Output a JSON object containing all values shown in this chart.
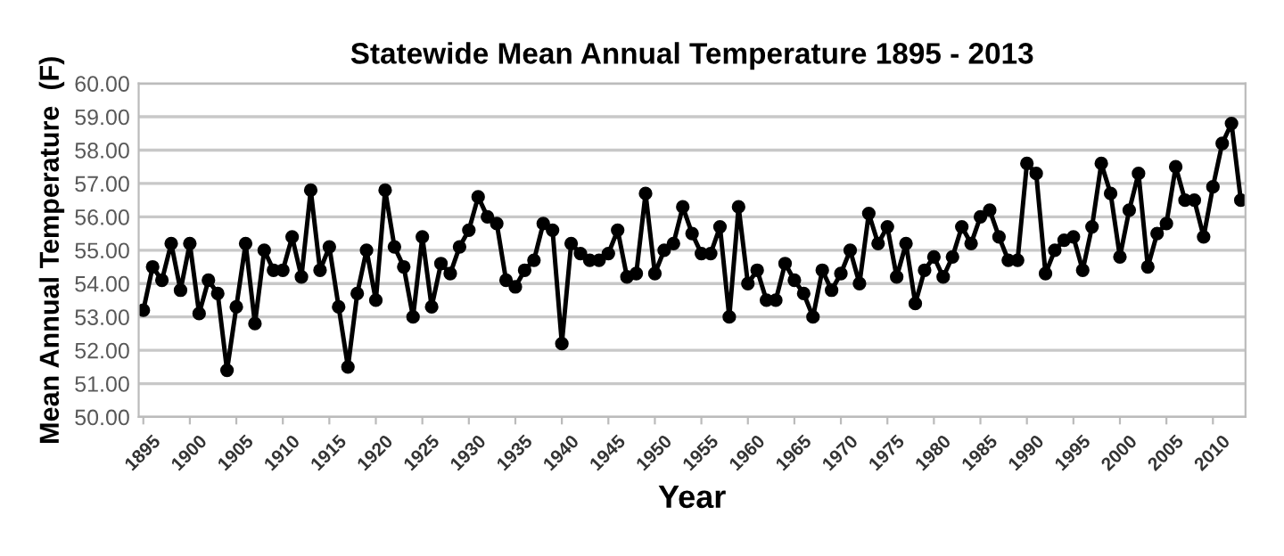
{
  "chart_data": {
    "type": "line",
    "title": "Statewide Mean Annual Temperature 1895 - 2013",
    "xlabel": "Year",
    "ylabel": "Mean Annual Temperature  (F)",
    "x": [
      1895,
      1896,
      1897,
      1898,
      1899,
      1900,
      1901,
      1902,
      1903,
      1904,
      1905,
      1906,
      1907,
      1908,
      1909,
      1910,
      1911,
      1912,
      1913,
      1914,
      1915,
      1916,
      1917,
      1918,
      1919,
      1920,
      1921,
      1922,
      1923,
      1924,
      1925,
      1926,
      1927,
      1928,
      1929,
      1930,
      1931,
      1932,
      1933,
      1934,
      1935,
      1936,
      1937,
      1938,
      1939,
      1940,
      1941,
      1942,
      1943,
      1944,
      1945,
      1946,
      1947,
      1948,
      1949,
      1950,
      1951,
      1952,
      1953,
      1954,
      1955,
      1956,
      1957,
      1958,
      1959,
      1960,
      1961,
      1962,
      1963,
      1964,
      1965,
      1966,
      1967,
      1968,
      1969,
      1970,
      1971,
      1972,
      1973,
      1974,
      1975,
      1976,
      1977,
      1978,
      1979,
      1980,
      1981,
      1982,
      1983,
      1984,
      1985,
      1986,
      1987,
      1988,
      1989,
      1990,
      1991,
      1992,
      1993,
      1994,
      1995,
      1996,
      1997,
      1998,
      1999,
      2000,
      2001,
      2002,
      2003,
      2004,
      2005,
      2006,
      2007,
      2008,
      2009,
      2010,
      2011,
      2012,
      2013
    ],
    "series": [
      {
        "color": "#000000",
        "values": [
          53.2,
          54.5,
          54.1,
          55.2,
          53.8,
          55.2,
          53.1,
          54.1,
          53.7,
          51.4,
          53.3,
          55.2,
          52.8,
          55.0,
          54.4,
          54.4,
          55.4,
          54.2,
          56.8,
          54.4,
          55.1,
          53.3,
          51.5,
          53.7,
          55.0,
          53.5,
          56.8,
          55.1,
          54.5,
          53.0,
          55.4,
          53.3,
          54.6,
          54.3,
          55.1,
          55.6,
          56.6,
          56.0,
          55.8,
          54.1,
          53.9,
          54.4,
          54.7,
          55.8,
          55.6,
          52.2,
          55.2,
          54.9,
          54.7,
          54.7,
          54.9,
          55.6,
          54.2,
          54.3,
          56.7,
          54.3,
          55.0,
          55.2,
          56.3,
          55.5,
          54.9,
          54.9,
          55.7,
          53.0,
          56.3,
          54.0,
          54.4,
          53.5,
          53.5,
          54.6,
          54.1,
          53.7,
          53.0,
          54.4,
          53.8,
          54.3,
          55.0,
          54.0,
          56.1,
          55.2,
          55.7,
          54.2,
          55.2,
          53.4,
          54.4,
          54.8,
          54.2,
          54.8,
          55.7,
          55.2,
          56.0,
          56.2,
          55.4,
          54.7,
          54.7,
          57.6,
          57.3,
          54.3,
          55.0,
          55.3,
          55.4,
          54.4,
          55.7,
          57.6,
          56.7,
          54.8,
          56.2,
          57.3,
          54.5,
          55.5,
          55.8,
          57.5,
          56.5,
          56.5,
          55.4,
          56.9,
          58.2,
          58.8,
          56.5
        ]
      }
    ],
    "xlim": [
      1894.5,
      2013.5
    ],
    "xticks": [
      1895,
      1900,
      1905,
      1910,
      1915,
      1920,
      1925,
      1930,
      1935,
      1940,
      1945,
      1950,
      1955,
      1960,
      1965,
      1970,
      1975,
      1980,
      1985,
      1990,
      1995,
      2000,
      2005,
      2010
    ],
    "ylim": [
      50,
      60
    ],
    "yticks": [
      {
        "value": 50,
        "label": "50.00"
      },
      {
        "value": 51,
        "label": "51.00"
      },
      {
        "value": 52,
        "label": "52.00"
      },
      {
        "value": 53,
        "label": "53.00"
      },
      {
        "value": 54,
        "label": "54.00"
      },
      {
        "value": 55,
        "label": "55.00"
      },
      {
        "value": 56,
        "label": "56.00"
      },
      {
        "value": 57,
        "label": "57.00"
      },
      {
        "value": 58,
        "label": "58.00"
      },
      {
        "value": 59,
        "label": "59.00"
      },
      {
        "value": 60,
        "label": "60.00"
      }
    ],
    "grid": "y",
    "marker": "circle",
    "line_style": "solid"
  }
}
